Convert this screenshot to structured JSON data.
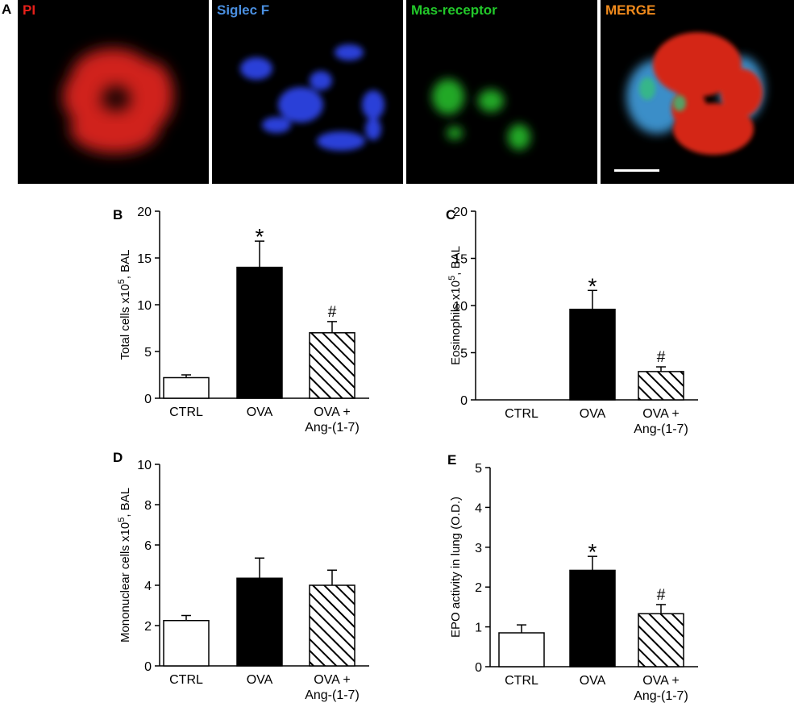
{
  "panel_a": {
    "letter": "A",
    "images": [
      {
        "label": "PI",
        "label_color": "#e8201a"
      },
      {
        "label": "Siglec F",
        "label_color": "#4a8fe0"
      },
      {
        "label": "Mas-receptor",
        "label_color": "#22c82a"
      },
      {
        "label": "MERGE",
        "label_color": "#f08a1c"
      }
    ]
  },
  "chart_data": [
    {
      "panel": "B",
      "type": "bar",
      "categories": [
        "CTRL",
        "OVA",
        "OVA +\nAng-(1-7)"
      ],
      "values": [
        2.2,
        14.0,
        7.0
      ],
      "errors": [
        0.3,
        2.8,
        1.2
      ],
      "significance": [
        "",
        "*",
        "#"
      ],
      "fills": [
        "white",
        "black",
        "hatch"
      ],
      "ylabel": "Total cells x10⁵, BAL",
      "ylim": [
        0,
        20
      ],
      "yticks": [
        "0",
        "5",
        "10",
        "15",
        "20"
      ]
    },
    {
      "panel": "C",
      "type": "bar",
      "categories": [
        "CTRL",
        "OVA",
        "OVA +\nAng-(1-7)"
      ],
      "values": [
        0,
        9.6,
        3.0
      ],
      "errors": [
        0,
        2.0,
        0.5
      ],
      "significance": [
        "",
        "*",
        "#"
      ],
      "fills": [
        "white",
        "black",
        "hatch"
      ],
      "ylabel": "Eosinophils x10⁵, BAL",
      "ylim": [
        0,
        20
      ],
      "yticks": [
        "0",
        "5",
        "10",
        "15",
        "20"
      ]
    },
    {
      "panel": "D",
      "type": "bar",
      "categories": [
        "CTRL",
        "OVA",
        "OVA +\nAng-(1-7)"
      ],
      "values": [
        2.25,
        4.35,
        4.0
      ],
      "errors": [
        0.25,
        1.0,
        0.75
      ],
      "significance": [
        "",
        "",
        ""
      ],
      "fills": [
        "white",
        "black",
        "hatch"
      ],
      "ylabel": "Mononuclear cells x10⁵, BAL",
      "ylim": [
        0,
        10
      ],
      "yticks": [
        "0",
        "2",
        "4",
        "6",
        "8",
        "10"
      ]
    },
    {
      "panel": "E",
      "type": "bar",
      "categories": [
        "CTRL",
        "OVA",
        "OVA +\nAng-(1-7)"
      ],
      "values": [
        0.85,
        2.42,
        1.33
      ],
      "errors": [
        0.2,
        0.35,
        0.23
      ],
      "significance": [
        "",
        "*",
        "#"
      ],
      "fills": [
        "white",
        "black",
        "hatch"
      ],
      "ylabel": "EPO activity in lung (O.D.)",
      "ylim": [
        0,
        5
      ],
      "yticks": [
        "0",
        "1",
        "2",
        "3",
        "4",
        "5"
      ]
    }
  ]
}
